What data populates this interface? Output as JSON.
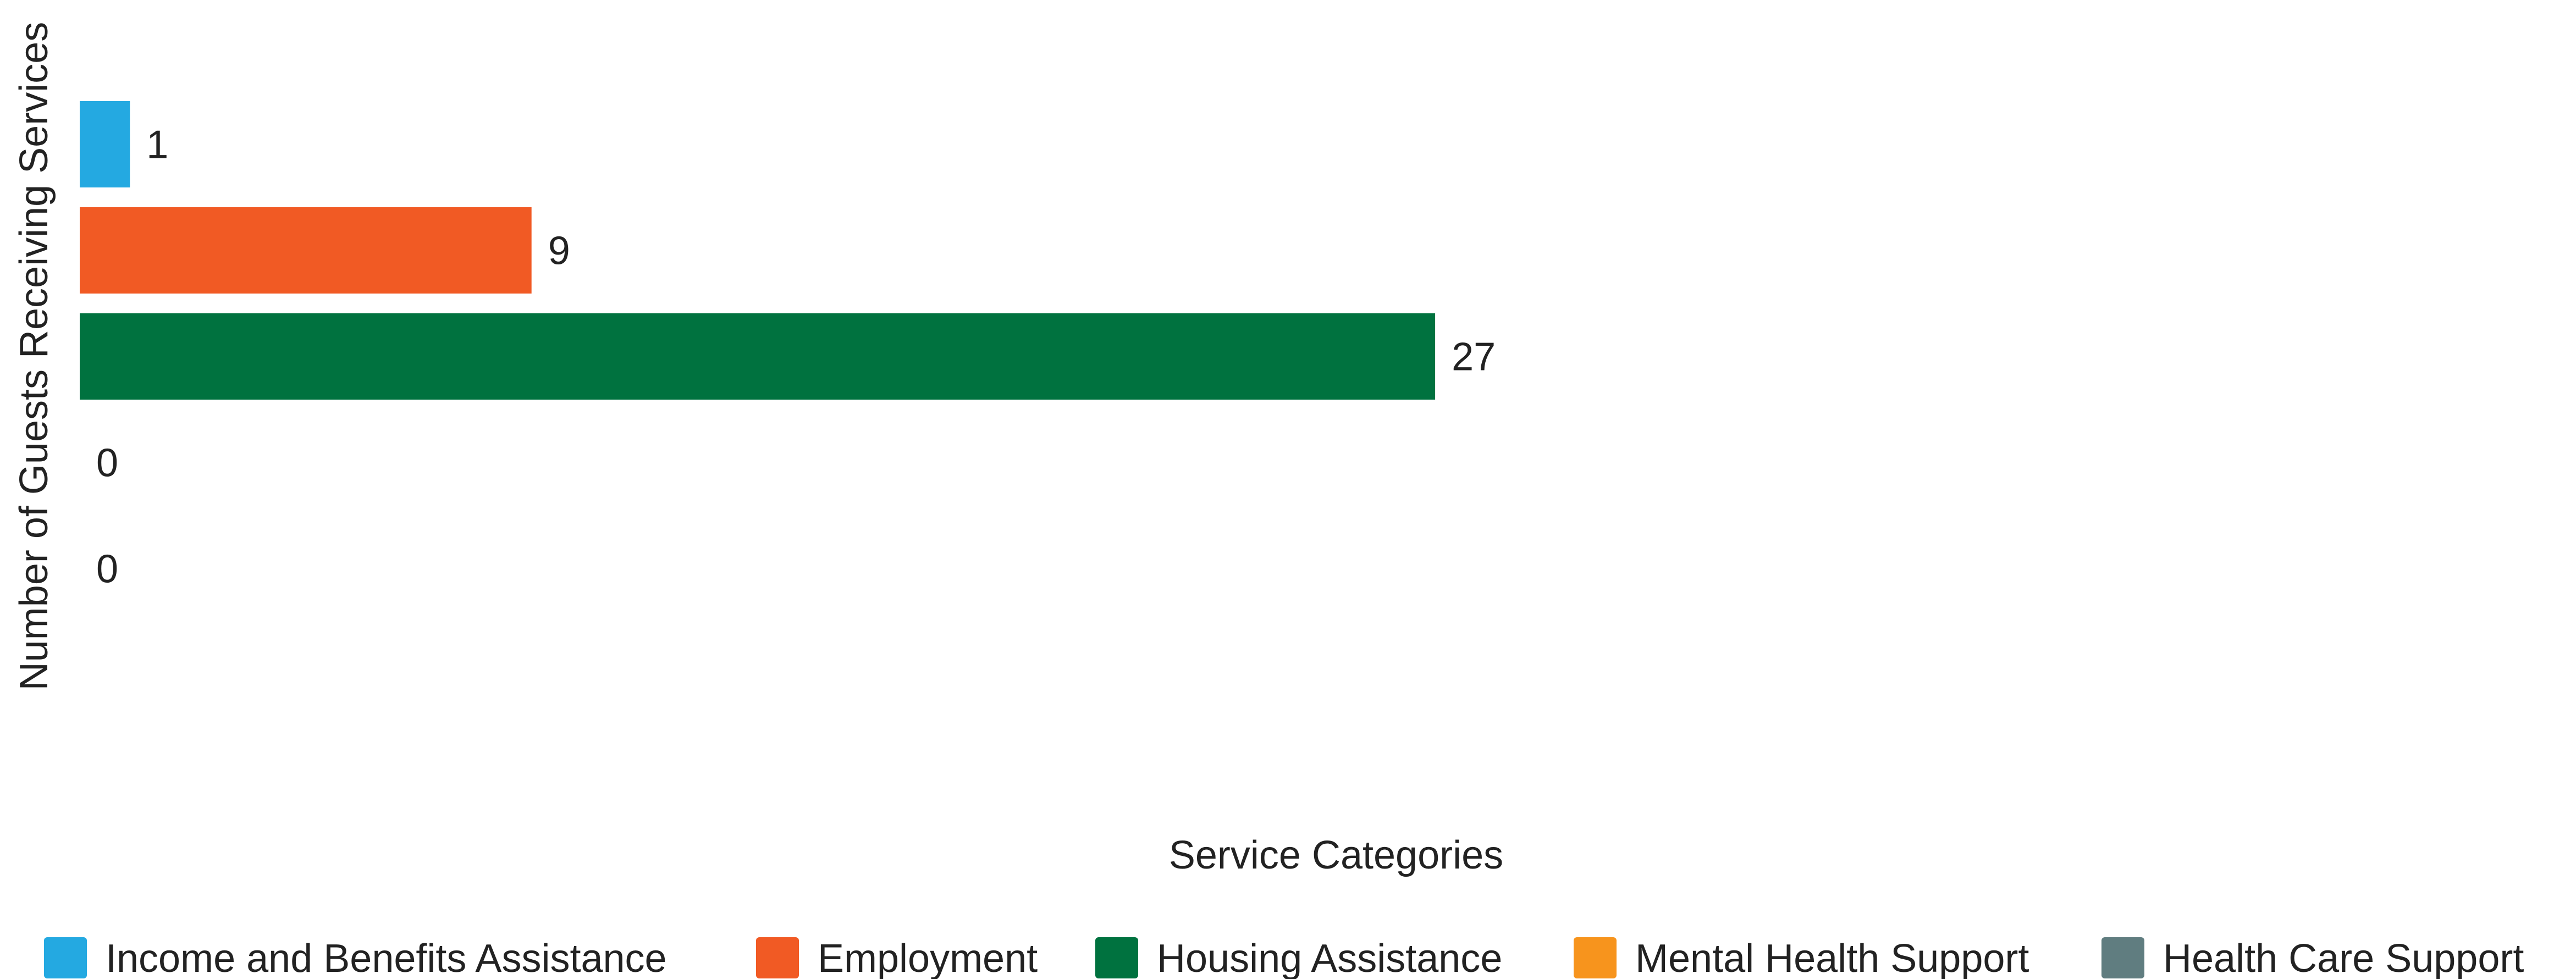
{
  "chart_data": {
    "type": "bar",
    "orientation": "horizontal",
    "title": "",
    "xlabel": "Service Categories",
    "ylabel": "Number of Guests Receiving Services",
    "xlim": [
      0,
      45
    ],
    "grid": false,
    "legend_position": "bottom",
    "series": [
      {
        "name": "Income and Benefits Assistance",
        "value": 1,
        "color": "#24A9E1"
      },
      {
        "name": "Employment",
        "value": 9,
        "color": "#F15A24"
      },
      {
        "name": "Housing Assistance",
        "value": 27,
        "color": "#00723F"
      },
      {
        "name": "Mental Health Support",
        "value": 0,
        "color": "#F7941D"
      },
      {
        "name": "Health Care Support",
        "value": 0,
        "color": "#607D80"
      }
    ]
  }
}
